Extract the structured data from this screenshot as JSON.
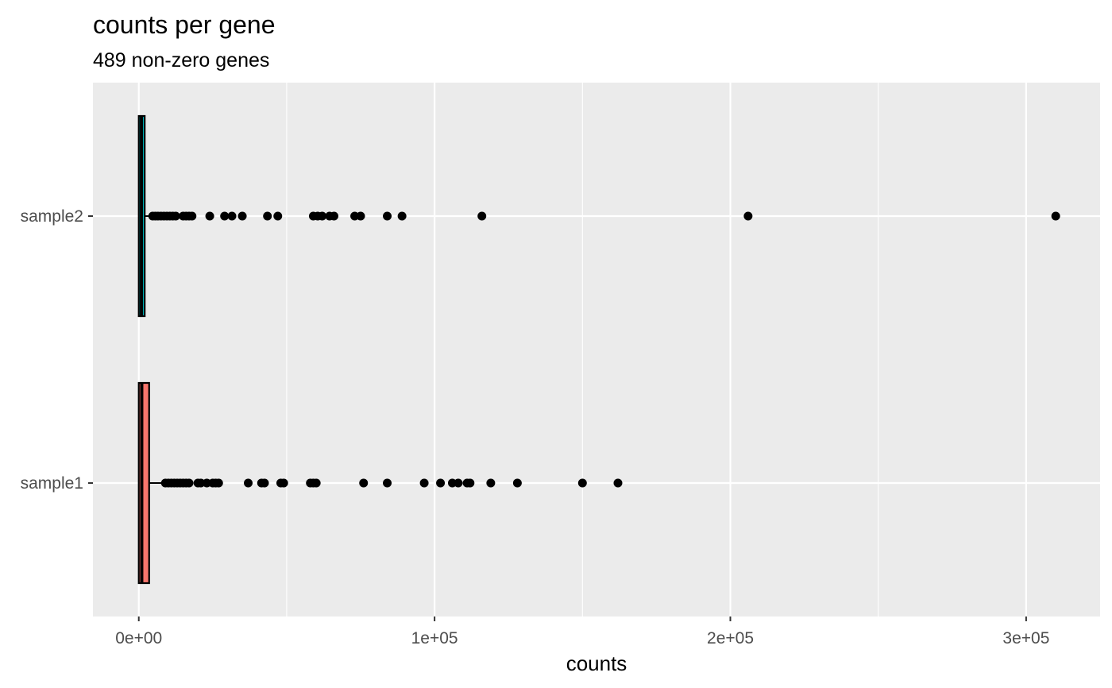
{
  "chart_data": {
    "type": "boxplot",
    "orientation": "horizontal",
    "title": "counts per gene",
    "subtitle": "489 non-zero genes",
    "xlabel": "counts",
    "ylabel": "",
    "xlim": [
      -15500,
      325000
    ],
    "x_ticks": [
      {
        "value": 0,
        "label": "0e+00"
      },
      {
        "value": 100000,
        "label": "1e+05"
      },
      {
        "value": 200000,
        "label": "2e+05"
      },
      {
        "value": 300000,
        "label": "3e+05"
      }
    ],
    "x_minor_ticks": [
      50000,
      150000,
      250000
    ],
    "grid": true,
    "legend": "none",
    "categories": [
      "sample1",
      "sample2"
    ],
    "series": [
      {
        "category": "sample1",
        "fill": "#F8766D",
        "box": {
          "min": 0,
          "q1": 0,
          "median": 1000,
          "q3": 3500,
          "max": 8700
        },
        "outliers": [
          9000,
          10000,
          11000,
          12000,
          13000,
          14000,
          15000,
          16000,
          17000,
          20000,
          21000,
          23000,
          25000,
          26000,
          27000,
          37000,
          41500,
          42500,
          48000,
          49000,
          58000,
          59000,
          60000,
          76000,
          84000,
          96500,
          102000,
          106000,
          108000,
          111000,
          112000,
          119000,
          128000,
          150000,
          162000
        ]
      },
      {
        "category": "sample2",
        "fill": "#00BFC4",
        "box": {
          "min": 0,
          "q1": 0,
          "median": 900,
          "q3": 2000,
          "max": 4000
        },
        "outliers": [
          4700,
          5600,
          6500,
          7500,
          8500,
          9500,
          10500,
          11500,
          12500,
          15000,
          16000,
          17000,
          18000,
          24000,
          29000,
          31500,
          35000,
          43500,
          47000,
          59000,
          60500,
          62000,
          64500,
          66000,
          73000,
          75000,
          84000,
          89000,
          116000,
          206000,
          310000
        ]
      }
    ]
  }
}
